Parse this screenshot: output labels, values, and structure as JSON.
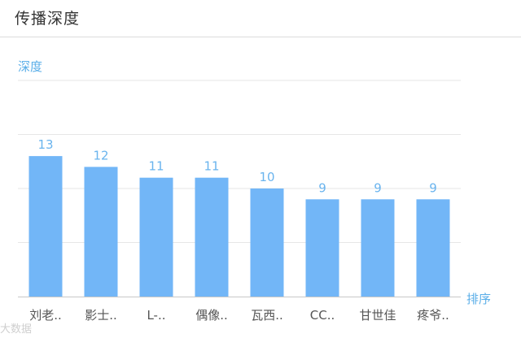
{
  "header": {
    "title": "传播深度"
  },
  "watermark": {
    "text": "大数据"
  },
  "chart_data": {
    "type": "bar",
    "title": "",
    "ylabel": "深度",
    "xlabel": "排序",
    "categories": [
      "刘老..",
      "影士..",
      "L-..",
      "偶像..",
      "瓦西..",
      "CC..",
      "甘世佳",
      "疼爷.."
    ],
    "values": [
      13,
      12,
      11,
      11,
      10,
      9,
      9,
      9
    ],
    "ylim": [
      0,
      20
    ],
    "grid": true,
    "data_labels": true,
    "bar_color": "#72b6f7",
    "label_color": "#6ab4ee",
    "axis_name_color": "#5aaee8"
  }
}
